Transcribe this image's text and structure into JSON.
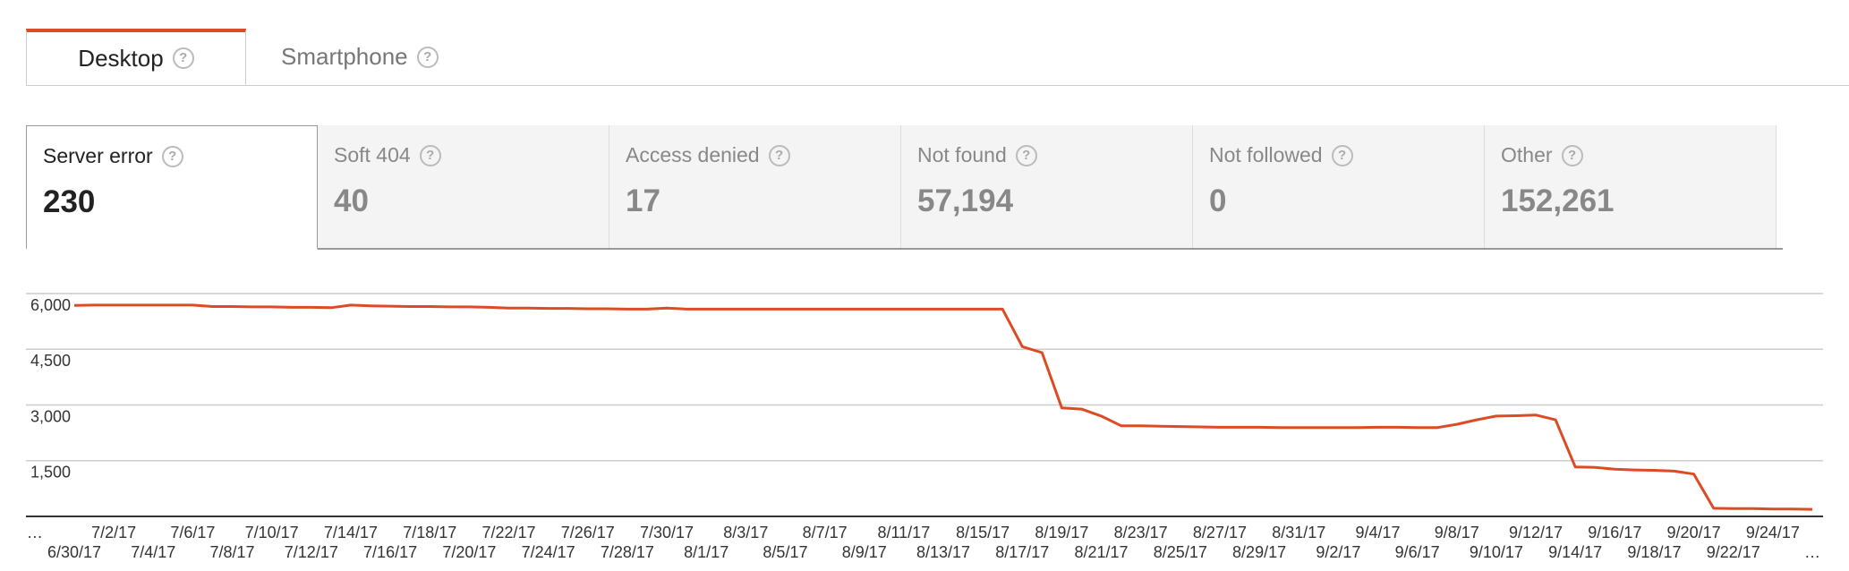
{
  "tabs": [
    {
      "label": "Desktop",
      "selected": true
    },
    {
      "label": "Smartphone",
      "selected": false
    }
  ],
  "cards": [
    {
      "label": "Server error",
      "value": "230",
      "selected": true
    },
    {
      "label": "Soft 404",
      "value": "40",
      "selected": false
    },
    {
      "label": "Access denied",
      "value": "17",
      "selected": false
    },
    {
      "label": "Not found",
      "value": "57,194",
      "selected": false
    },
    {
      "label": "Not followed",
      "value": "0",
      "selected": false
    },
    {
      "label": "Other",
      "value": "152,261",
      "selected": false
    }
  ],
  "chart_data": {
    "type": "line",
    "color": "#dd4b25",
    "grid": true,
    "x_overflow_label": "…",
    "categories": [
      "6/30/17",
      null,
      "7/2/17",
      null,
      "7/4/17",
      null,
      "7/6/17",
      null,
      "7/8/17",
      null,
      "7/10/17",
      null,
      "7/12/17",
      null,
      "7/14/17",
      null,
      "7/16/17",
      null,
      "7/18/17",
      null,
      "7/20/17",
      null,
      "7/22/17",
      null,
      "7/24/17",
      null,
      "7/26/17",
      null,
      "7/28/17",
      null,
      "7/30/17",
      null,
      "8/1/17",
      null,
      "8/3/17",
      null,
      "8/5/17",
      null,
      "8/7/17",
      null,
      "8/9/17",
      null,
      "8/11/17",
      null,
      "8/13/17",
      null,
      "8/15/17",
      null,
      "8/17/17",
      null,
      "8/19/17",
      null,
      "8/21/17",
      null,
      "8/23/17",
      null,
      "8/25/17",
      null,
      "8/27/17",
      null,
      "8/29/17",
      null,
      "8/31/17",
      null,
      "9/2/17",
      null,
      "9/4/17",
      null,
      "9/6/17",
      null,
      "9/8/17",
      null,
      "9/10/17",
      null,
      "9/12/17",
      null,
      "9/14/17",
      null,
      "9/16/17",
      null,
      "9/18/17",
      null,
      "9/20/17",
      null,
      "9/22/17",
      null,
      "9/24/17",
      null,
      "…"
    ],
    "values": [
      5680,
      5690,
      5690,
      5690,
      5690,
      5690,
      5690,
      5650,
      5650,
      5640,
      5640,
      5630,
      5630,
      5620,
      5690,
      5670,
      5660,
      5650,
      5650,
      5640,
      5640,
      5630,
      5610,
      5610,
      5600,
      5600,
      5590,
      5590,
      5580,
      5580,
      5610,
      5580,
      5580,
      5580,
      5580,
      5580,
      5580,
      5580,
      5580,
      5580,
      5580,
      5580,
      5580,
      5580,
      5580,
      5580,
      5580,
      5580,
      4570,
      4410,
      2920,
      2890,
      2700,
      2440,
      2440,
      2430,
      2420,
      2410,
      2400,
      2400,
      2400,
      2390,
      2390,
      2390,
      2390,
      2390,
      2400,
      2400,
      2390,
      2390,
      2480,
      2600,
      2700,
      2710,
      2730,
      2600,
      1330,
      1320,
      1270,
      1250,
      1240,
      1220,
      1140,
      220,
      210,
      210,
      200,
      200,
      190
    ],
    "ylim": [
      0,
      6000
    ],
    "yticks": [
      {
        "value": 1500,
        "label": "1,500"
      },
      {
        "value": 3000,
        "label": "3,000"
      },
      {
        "value": 4500,
        "label": "4,500"
      },
      {
        "value": 6000,
        "label": "6,000"
      }
    ]
  }
}
